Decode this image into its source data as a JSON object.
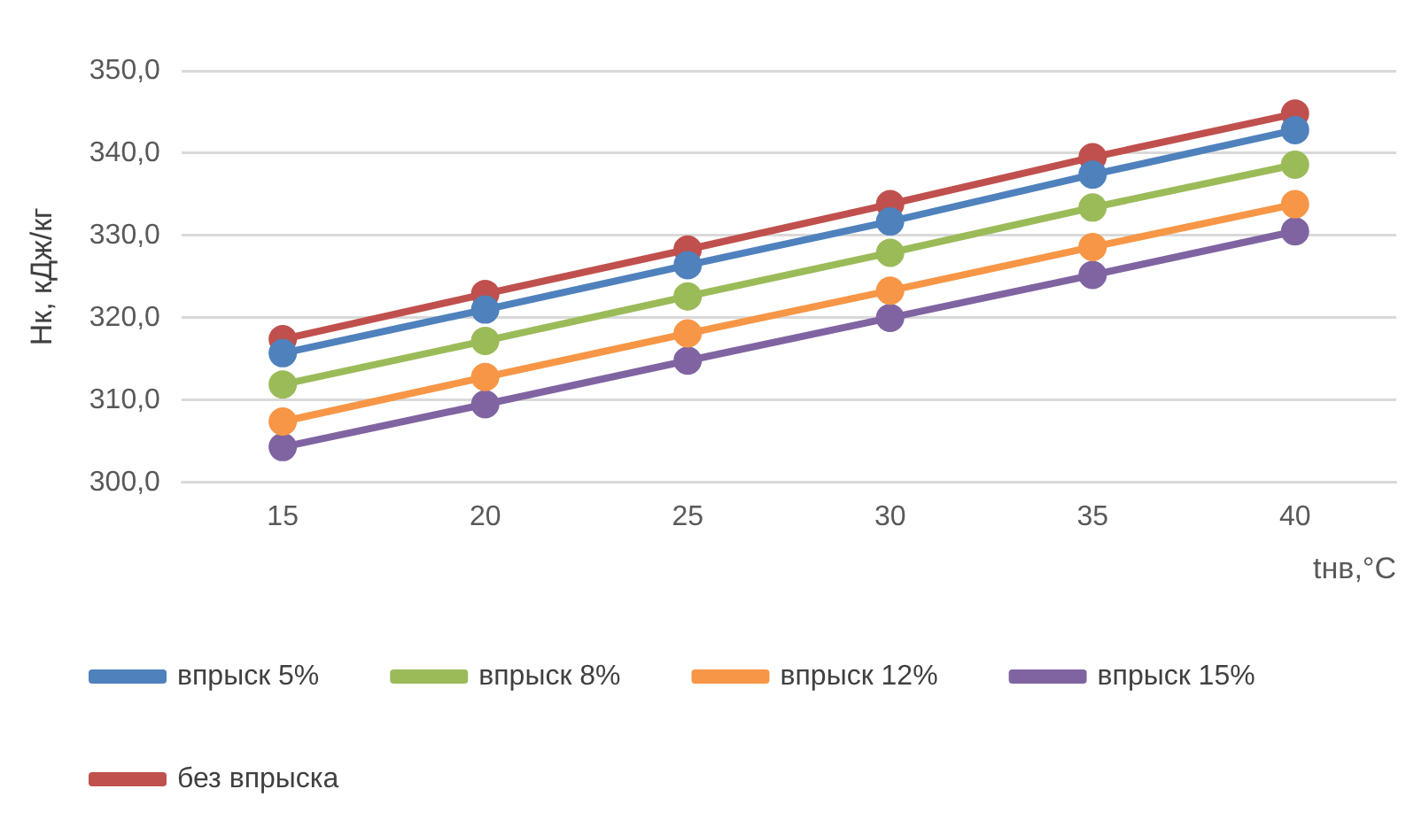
{
  "chart_data": {
    "type": "line",
    "xlabel": "tнв,°C",
    "ylabel": "Нк, кДж/кг",
    "categories": [
      "15",
      "20",
      "25",
      "30",
      "35",
      "40"
    ],
    "series": [
      {
        "name": "впрыск 5%",
        "color": "#4f81bd",
        "values": [
          315.7,
          321.0,
          326.4,
          331.7,
          337.4,
          342.8
        ]
      },
      {
        "name": "впрыск 8%",
        "color": "#9bbb59",
        "values": [
          311.9,
          317.2,
          322.6,
          327.9,
          333.4,
          338.6
        ]
      },
      {
        "name": "впрыск 12%",
        "color": "#f79646",
        "values": [
          307.4,
          312.8,
          318.1,
          323.3,
          328.6,
          333.8
        ]
      },
      {
        "name": "впрыск 15%",
        "color": "#8064a2",
        "values": [
          304.3,
          309.5,
          314.8,
          320.0,
          325.2,
          330.5
        ]
      },
      {
        "name": "без впрыска",
        "color": "#c0504d",
        "values": [
          317.4,
          322.9,
          328.3,
          333.8,
          339.5,
          344.8
        ]
      }
    ],
    "ylim": [
      300,
      350
    ],
    "yticks": [
      {
        "value": 300,
        "label": "300,0"
      },
      {
        "value": 310,
        "label": "310,0"
      },
      {
        "value": 320,
        "label": "320,0"
      },
      {
        "value": 330,
        "label": "330,0"
      },
      {
        "value": 340,
        "label": "340,0"
      },
      {
        "value": 350,
        "label": "350,0"
      }
    ],
    "grid": "y",
    "legend": "bottom",
    "marker": "circle",
    "line_style": "solid"
  }
}
